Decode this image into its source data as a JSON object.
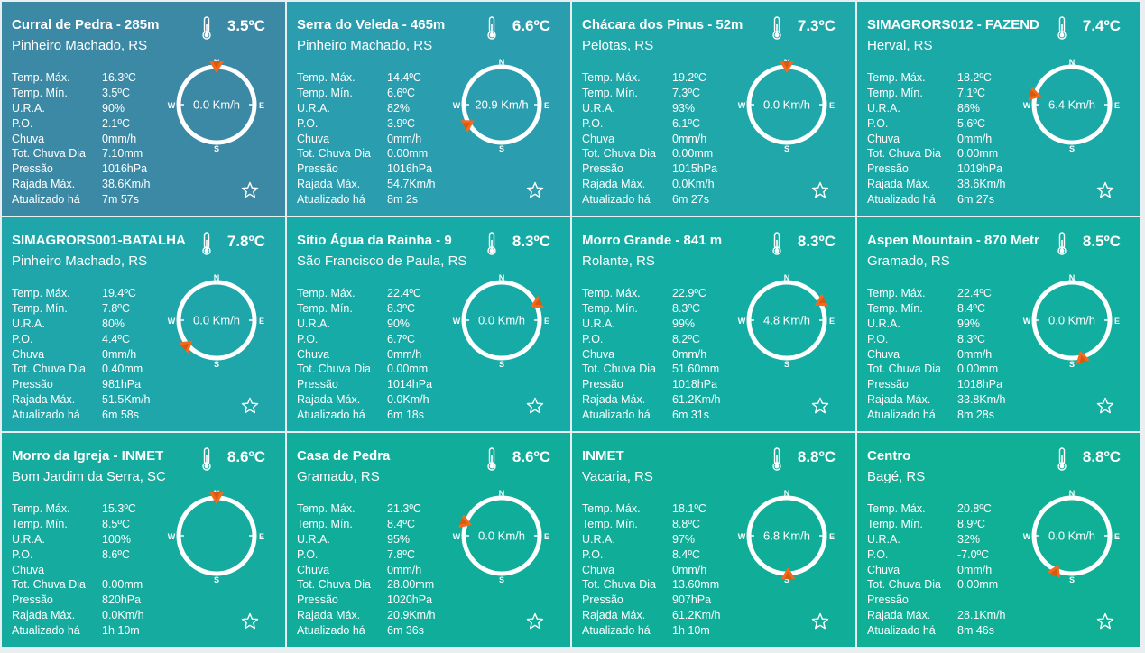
{
  "labels": {
    "max": "Temp. Máx.",
    "min": "Temp. Mín.",
    "ura": "U.R.A.",
    "po": "P.O.",
    "chuva": "Chuva",
    "totchuva": "Tot. Chuva Dia",
    "pressao": "Pressão",
    "rajada": "Rajada Máx.",
    "atualizado": "Atualizado há"
  },
  "compass_letters": {
    "n": "N",
    "s": "S",
    "e": "E",
    "w": "W"
  },
  "colors": {
    "accent_arrow": "#f26b1d"
  },
  "stations": [
    {
      "name": "Curral de Pedra - 285m",
      "city": "Pinheiro Machado, RS",
      "temp": "3.5ºC",
      "max": "16.3ºC",
      "min": "3.5ºC",
      "ura": "90%",
      "po": "2.1ºC",
      "chuva": "0mm/h",
      "totchuva": "7.10mm",
      "pressao": "1016hPa",
      "rajada": "38.6Km/h",
      "atualizado": "7m 57s",
      "wind": "0.0 Km/h",
      "wind_dir_deg": 0,
      "bg": "#3c89a6"
    },
    {
      "name": "Serra do Veleda - 465m",
      "city": "Pinheiro Machado, RS",
      "temp": "6.6ºC",
      "max": "14.4ºC",
      "min": "6.6ºC",
      "ura": "82%",
      "po": "3.9ºC",
      "chuva": "0mm/h",
      "totchuva": "0.00mm",
      "pressao": "1016hPa",
      "rajada": "54.7Km/h",
      "atualizado": "8m 2s",
      "wind": "20.9 Km/h",
      "wind_dir_deg": 240,
      "bg": "#2a9daf"
    },
    {
      "name": "Chácara dos Pinus - 52m",
      "city": "Pelotas, RS",
      "temp": "7.3ºC",
      "max": "19.2ºC",
      "min": "7.3ºC",
      "ura": "93%",
      "po": "6.1ºC",
      "chuva": "0mm/h",
      "totchuva": "0.00mm",
      "pressao": "1015hPa",
      "rajada": "0.0Km/h",
      "atualizado": "6m 27s",
      "wind": "0.0 Km/h",
      "wind_dir_deg": 0,
      "bg": "#1fa7aa"
    },
    {
      "name": "SIMAGRORS012 - FAZEND",
      "city": "Herval, RS",
      "temp": "7.4ºC",
      "max": "18.2ºC",
      "min": "7.1ºC",
      "ura": "86%",
      "po": "5.6ºC",
      "chuva": "0mm/h",
      "totchuva": "0.00mm",
      "pressao": "1019hPa",
      "rajada": "38.6Km/h",
      "atualizado": "6m 27s",
      "wind": "6.4 Km/h",
      "wind_dir_deg": 285,
      "bg": "#1ba9a8"
    },
    {
      "name": "SIMAGRORS001-BATALHA",
      "city": "Pinheiro Machado, RS",
      "temp": "7.8ºC",
      "max": "19.4ºC",
      "min": "7.8ºC",
      "ura": "80%",
      "po": "4.4ºC",
      "chuva": "0mm/h",
      "totchuva": "0.40mm",
      "pressao": "981hPa",
      "rajada": "51.5Km/h",
      "atualizado": "6m 58s",
      "wind": "0.0 Km/h",
      "wind_dir_deg": 230,
      "bg": "#1ea6ab"
    },
    {
      "name": "Sítio Água da Rainha - 9",
      "city": "São Francisco de Paula, RS",
      "temp": "8.3ºC",
      "max": "22.4ºC",
      "min": "8.3ºC",
      "ura": "90%",
      "po": "6.7ºC",
      "chuva": "0mm/h",
      "totchuva": "0.00mm",
      "pressao": "1014hPa",
      "rajada": "0.0Km/h",
      "atualizado": "6m 18s",
      "wind": "0.0 Km/h",
      "wind_dir_deg": 65,
      "bg": "#16aba6"
    },
    {
      "name": "Morro Grande - 841 m",
      "city": "Rolante, RS",
      "temp": "8.3ºC",
      "max": "22.9ºC",
      "min": "8.3ºC",
      "ura": "99%",
      "po": "8.2ºC",
      "chuva": "0mm/h",
      "totchuva": "51.60mm",
      "pressao": "1018hPa",
      "rajada": "61.2Km/h",
      "atualizado": "6m 31s",
      "wind": "4.8 Km/h",
      "wind_dir_deg": 62,
      "bg": "#14ada3"
    },
    {
      "name": "Aspen Mountain - 870 Metr",
      "city": "Gramado, RS",
      "temp": "8.5ºC",
      "max": "22.4ºC",
      "min": "8.4ºC",
      "ura": "99%",
      "po": "8.3ºC",
      "chuva": "0mm/h",
      "totchuva": "0.00mm",
      "pressao": "1018hPa",
      "rajada": "33.8Km/h",
      "atualizado": "8m 28s",
      "wind": "0.0 Km/h",
      "wind_dir_deg": 165,
      "bg": "#12ae9f"
    },
    {
      "name": "Morro da Igreja - INMET",
      "city": "Bom Jardim da Serra, SC",
      "temp": "8.6ºC",
      "max": "15.3ºC",
      "min": "8.5ºC",
      "ura": "100%",
      "po": "8.6ºC",
      "chuva": "",
      "totchuva": "0.00mm",
      "pressao": "820hPa",
      "rajada": "0.0Km/h",
      "atualizado": "1h 10m",
      "wind": "",
      "wind_dir_deg": 0,
      "bg": "#15ab9e"
    },
    {
      "name": "Casa de Pedra",
      "city": "Gramado, RS",
      "temp": "8.6ºC",
      "max": "21.3ºC",
      "min": "8.4ºC",
      "ura": "95%",
      "po": "7.8ºC",
      "chuva": "0mm/h",
      "totchuva": "28.00mm",
      "pressao": "1020hPa",
      "rajada": "20.9Km/h",
      "atualizado": "6m 36s",
      "wind": "0.0 Km/h",
      "wind_dir_deg": 290,
      "bg": "#11ad9b"
    },
    {
      "name": "INMET",
      "city": "Vacaria, RS",
      "temp": "8.8ºC",
      "max": "18.1ºC",
      "min": "8.8ºC",
      "ura": "97%",
      "po": "8.4ºC",
      "chuva": "0mm/h",
      "totchuva": "13.60mm",
      "pressao": "907hPa",
      "rajada": "61.2Km/h",
      "atualizado": "1h 10m",
      "wind": "6.8 Km/h",
      "wind_dir_deg": 178,
      "bg": "#10ae98"
    },
    {
      "name": "Centro",
      "city": "Bagé, RS",
      "temp": "8.8ºC",
      "max": "20.8ºC",
      "min": "8.9ºC",
      "ura": "32%",
      "po": "-7.0ºC",
      "chuva": "0mm/h",
      "totchuva": "0.00mm",
      "pressao": "",
      "rajada": "28.1Km/h",
      "atualizado": "8m 46s",
      "wind": "0.0 Km/h",
      "wind_dir_deg": 205,
      "bg": "#0fb095"
    }
  ]
}
